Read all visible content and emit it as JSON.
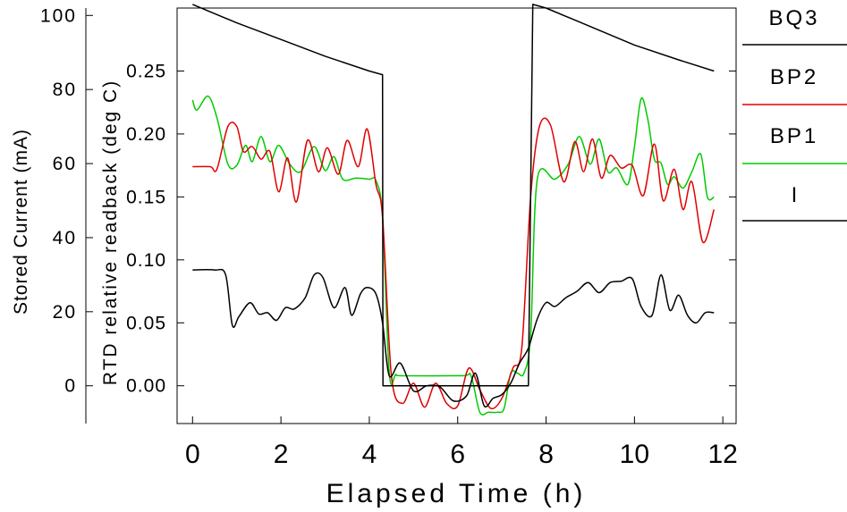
{
  "chart_data": {
    "type": "line",
    "xlabel": "Elapsed Time (h)",
    "ylabel_left": "Stored Current (mA)",
    "ylabel_right": "RTD relative readback (deg C)",
    "xlim": [
      -0.35,
      12.3
    ],
    "ylim_rtd": [
      -0.03,
      0.3
    ],
    "current_ticks": [
      0,
      20,
      40,
      60,
      80,
      100
    ],
    "rtd_ticks": [
      "0.00",
      "0.05",
      "0.10",
      "0.15",
      "0.20",
      "0.25"
    ],
    "x_ticks": [
      0,
      2,
      4,
      6,
      8,
      10,
      12
    ],
    "legend": [
      "BQ3",
      "BP2",
      "BP1",
      "I"
    ],
    "colors": {
      "BQ3": "#000000",
      "BP2": "#e00000",
      "BP1": "#00cc00",
      "I": "#000000"
    },
    "series": [
      {
        "name": "I",
        "units": "mA",
        "x": [
          0,
          1,
          2,
          3,
          4,
          4.3,
          4.31,
          7.5,
          7.6,
          7.7,
          8,
          9,
          10,
          11,
          11.8
        ],
        "y": [
          103,
          98,
          93.5,
          89,
          85,
          84,
          0,
          0,
          0,
          103,
          102,
          97,
          92,
          88,
          85
        ]
      },
      {
        "name": "BQ3",
        "units": "deg C",
        "x": [
          0,
          0.5,
          0.75,
          0.9,
          1.05,
          1.3,
          1.5,
          1.7,
          1.9,
          2.1,
          2.3,
          2.55,
          2.75,
          2.95,
          3.2,
          3.45,
          3.6,
          3.8,
          3.95,
          4.15,
          4.3,
          4.45,
          4.7,
          5.0,
          5.3,
          5.6,
          5.9,
          6.2,
          6.4,
          6.6,
          6.8,
          7.0,
          7.2,
          7.4,
          7.6,
          7.8,
          8.0,
          8.2,
          8.45,
          8.7,
          8.95,
          9.2,
          9.45,
          9.7,
          9.95,
          10.15,
          10.4,
          10.6,
          10.8,
          11.0,
          11.2,
          11.4,
          11.6,
          11.8
        ],
        "y": [
          0.092,
          0.092,
          0.088,
          0.048,
          0.055,
          0.066,
          0.057,
          0.058,
          0.052,
          0.062,
          0.061,
          0.07,
          0.088,
          0.086,
          0.062,
          0.078,
          0.056,
          0.073,
          0.078,
          0.073,
          0.05,
          0.008,
          0.018,
          -0.004,
          0.0,
          -0.001,
          -0.012,
          -0.008,
          0.01,
          -0.016,
          -0.01,
          -0.007,
          0.002,
          0.018,
          0.03,
          0.053,
          0.066,
          0.063,
          0.07,
          0.075,
          0.082,
          0.074,
          0.082,
          0.083,
          0.085,
          0.063,
          0.056,
          0.088,
          0.06,
          0.072,
          0.056,
          0.05,
          0.058,
          0.058
        ]
      },
      {
        "name": "BP2",
        "units": "deg C",
        "x": [
          0,
          0.4,
          0.55,
          0.8,
          1.0,
          1.15,
          1.35,
          1.55,
          1.75,
          1.95,
          2.15,
          2.35,
          2.6,
          2.85,
          3.05,
          3.3,
          3.5,
          3.75,
          3.95,
          4.15,
          4.3,
          4.5,
          4.75,
          5.0,
          5.25,
          5.5,
          5.75,
          6.0,
          6.25,
          6.5,
          6.75,
          7.0,
          7.25,
          7.45,
          7.65,
          7.85,
          8.1,
          8.4,
          8.65,
          8.85,
          9.05,
          9.25,
          9.45,
          9.7,
          9.95,
          10.2,
          10.45,
          10.65,
          10.9,
          11.1,
          11.3,
          11.55,
          11.8
        ],
        "y": [
          0.174,
          0.174,
          0.172,
          0.206,
          0.206,
          0.186,
          0.19,
          0.18,
          0.186,
          0.154,
          0.181,
          0.146,
          0.195,
          0.17,
          0.189,
          0.168,
          0.195,
          0.174,
          0.204,
          0.16,
          0.134,
          0.008,
          -0.014,
          0.002,
          -0.017,
          0.002,
          -0.014,
          -0.016,
          0.014,
          -0.003,
          -0.018,
          -0.01,
          0.014,
          0.03,
          0.15,
          0.206,
          0.207,
          0.162,
          0.194,
          0.17,
          0.196,
          0.165,
          0.183,
          0.173,
          0.175,
          0.151,
          0.192,
          0.147,
          0.172,
          0.14,
          0.162,
          0.114,
          0.14
        ]
      },
      {
        "name": "BP1",
        "units": "deg C",
        "x": [
          0,
          0.1,
          0.35,
          0.55,
          0.8,
          1.0,
          1.2,
          1.35,
          1.55,
          1.75,
          1.95,
          2.2,
          2.45,
          2.75,
          3.0,
          3.2,
          3.4,
          3.7,
          4.0,
          4.15,
          4.3,
          4.45,
          4.6,
          4.75,
          6.1,
          6.3,
          6.5,
          6.7,
          6.9,
          7.05,
          7.2,
          7.35,
          7.5,
          7.65,
          7.8,
          8.2,
          8.5,
          8.75,
          9.0,
          9.2,
          9.4,
          9.6,
          9.85,
          10.0,
          10.15,
          10.3,
          10.45,
          10.6,
          10.75,
          10.9,
          11.1,
          11.3,
          11.5,
          11.65,
          11.8
        ],
        "y": [
          0.227,
          0.219,
          0.23,
          0.213,
          0.176,
          0.175,
          0.191,
          0.178,
          0.198,
          0.178,
          0.191,
          0.176,
          0.17,
          0.19,
          0.171,
          0.182,
          0.164,
          0.165,
          0.164,
          0.163,
          0.134,
          0.01,
          0.009,
          0.008,
          0.008,
          0.008,
          -0.021,
          -0.021,
          -0.021,
          -0.018,
          0.01,
          0.01,
          0.01,
          0.04,
          0.164,
          0.164,
          0.176,
          0.198,
          0.176,
          0.196,
          0.17,
          0.173,
          0.16,
          0.19,
          0.228,
          0.212,
          0.18,
          0.177,
          0.16,
          0.166,
          0.157,
          0.17,
          0.184,
          0.15,
          0.15
        ]
      }
    ]
  }
}
